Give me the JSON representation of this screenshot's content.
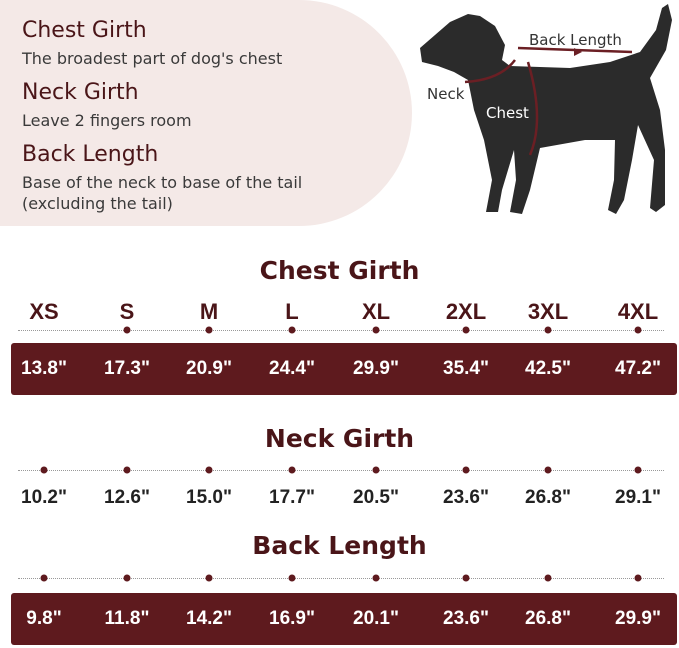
{
  "guide": [
    {
      "title": "Chest Girth",
      "desc": [
        "The broadest part of dog's chest"
      ]
    },
    {
      "title": "Neck Girth",
      "desc": [
        "Leave 2 fingers room"
      ]
    },
    {
      "title": "Back Length",
      "desc": [
        "Base of the neck to base of the tail",
        "(excluding the tail)"
      ]
    }
  ],
  "diagram": {
    "back_label": "Back Length",
    "neck_label": "Neck",
    "chest_label": "Chest"
  },
  "sizes": [
    "XS",
    "S",
    "M",
    "L",
    "XL",
    "2XL",
    "3XL",
    "4XL"
  ],
  "sections": [
    {
      "title": "Chest Girth",
      "values": [
        "13.8\"",
        "17.3\"",
        "20.9\"",
        "24.4\"",
        "29.9\"",
        "35.4\"",
        "42.5\"",
        "47.2\""
      ]
    },
    {
      "title": "Neck Girth",
      "values": [
        "10.2\"",
        "12.6\"",
        "15.0\"",
        "17.7\"",
        "20.5\"",
        "23.6\"",
        "26.8\"",
        "29.1\""
      ]
    },
    {
      "title": "Back Length",
      "values": [
        "9.8\"",
        "11.8\"",
        "14.2\"",
        "16.9\"",
        "20.1\"",
        "23.6\"",
        "26.8\"",
        "29.9\""
      ]
    }
  ],
  "colors": {
    "accent": "#5e1a1e",
    "panel": "#f4e9e7",
    "text": "#4a1518"
  }
}
